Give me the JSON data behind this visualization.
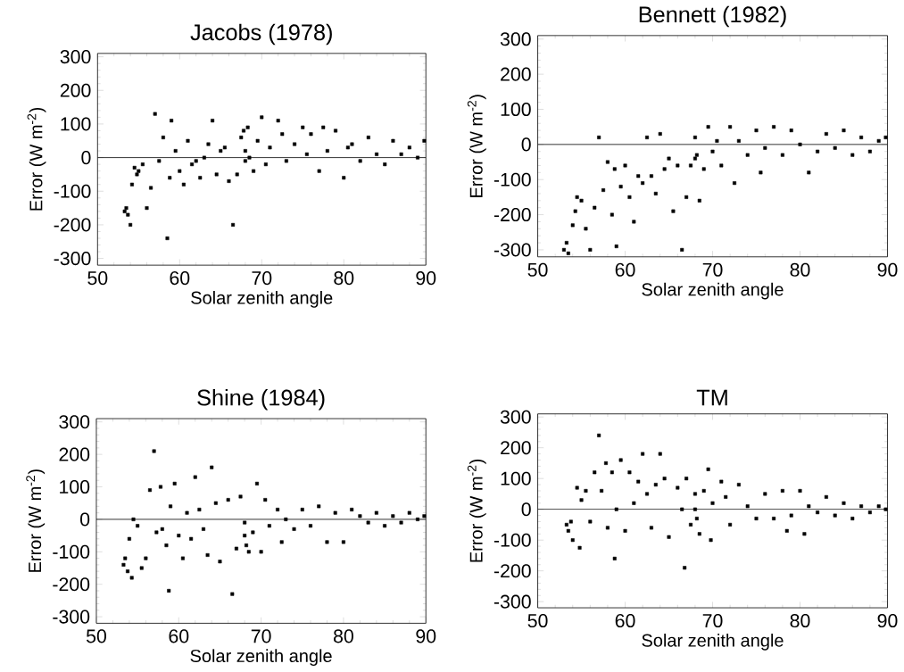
{
  "chart_data": [
    {
      "type": "scatter",
      "title": "Jacobs (1978)",
      "xlabel": "Solar zenith angle",
      "ylabel": "Error (W m$^{-2}$)",
      "xlim": [
        50,
        90
      ],
      "ylim": [
        -320,
        310
      ],
      "xticks": [
        50,
        60,
        70,
        80,
        90
      ],
      "yticks": [
        -300,
        -200,
        -100,
        0,
        100,
        200,
        300
      ],
      "marker": "square",
      "ref_lines": [
        {
          "axis": "y",
          "value": 0
        }
      ],
      "series": [
        {
          "color": "#000000",
          "x": [
            53.3,
            53.5,
            53.7,
            54,
            54.2,
            54.5,
            54.8,
            55,
            55.5,
            56,
            56.5,
            57,
            57.5,
            58,
            58.5,
            58.8,
            59,
            59.5,
            60,
            60.5,
            61,
            61.5,
            62,
            62.5,
            63,
            63.5,
            64,
            64.5,
            65,
            65.5,
            66,
            66.5,
            67,
            67.5,
            67.8,
            68,
            68,
            68.3,
            68.5,
            69,
            69.5,
            70,
            70.5,
            71,
            72,
            72.5,
            73,
            74,
            75,
            75.5,
            76,
            77,
            77.5,
            78,
            79,
            80,
            80.5,
            81,
            82,
            83,
            84,
            85,
            86,
            87,
            88,
            89,
            89.8
          ],
          "values": [
            -160,
            -150,
            -170,
            -200,
            -80,
            -30,
            -50,
            -40,
            -20,
            -150,
            -90,
            130,
            -10,
            60,
            -240,
            -60,
            110,
            20,
            -40,
            -80,
            50,
            -20,
            -10,
            -60,
            0,
            40,
            110,
            -50,
            20,
            30,
            -70,
            -200,
            -50,
            60,
            80,
            20,
            -10,
            90,
            0,
            -40,
            50,
            120,
            -20,
            30,
            110,
            70,
            -10,
            40,
            90,
            10,
            70,
            -40,
            90,
            20,
            80,
            -60,
            30,
            40,
            -10,
            60,
            10,
            -20,
            50,
            10,
            30,
            0,
            50
          ]
        }
      ]
    },
    {
      "type": "scatter",
      "title": "Bennett (1982)",
      "xlabel": "Solar zenith angle",
      "ylabel": "Error (W m$^{-2}$)",
      "xlim": [
        50,
        90
      ],
      "ylim": [
        -320,
        310
      ],
      "xticks": [
        50,
        60,
        70,
        80,
        90
      ],
      "yticks": [
        -300,
        -200,
        -100,
        0,
        100,
        200,
        300
      ],
      "marker": "square",
      "ref_lines": [
        {
          "axis": "y",
          "value": 0
        }
      ],
      "series": [
        {
          "color": "#000000",
          "x": [
            53,
            53.3,
            53.5,
            54,
            54.3,
            54.5,
            55,
            55.5,
            56,
            56.5,
            57,
            57.5,
            58,
            58.5,
            58.8,
            59,
            59.5,
            60,
            60.5,
            61,
            61.5,
            62,
            62.5,
            63,
            63.5,
            64,
            64.5,
            65,
            65.5,
            66,
            66.5,
            67,
            67.5,
            68,
            68,
            68.2,
            68.5,
            69,
            69.5,
            70,
            70.5,
            71,
            72,
            72.5,
            73,
            74,
            75,
            75.5,
            76,
            77,
            78,
            79,
            80,
            81,
            82,
            83,
            84,
            85,
            86,
            87,
            88,
            89,
            89.8
          ],
          "values": [
            -300,
            -280,
            -310,
            -230,
            -190,
            -150,
            -160,
            -240,
            -300,
            -180,
            20,
            -130,
            -50,
            -200,
            -70,
            -290,
            -120,
            -60,
            -150,
            -220,
            -90,
            -110,
            20,
            -90,
            -140,
            30,
            -70,
            -40,
            -190,
            -60,
            -300,
            -150,
            -60,
            20,
            -40,
            -30,
            -160,
            -70,
            50,
            -20,
            10,
            -60,
            50,
            -110,
            10,
            -30,
            40,
            -80,
            -10,
            50,
            -30,
            40,
            0,
            -80,
            -20,
            30,
            -10,
            40,
            -30,
            20,
            -20,
            10,
            20
          ]
        }
      ]
    },
    {
      "type": "scatter",
      "title": "Shine (1984)",
      "xlabel": "Solar zenith angle",
      "ylabel": "Error (W m$^{-2}$)",
      "xlim": [
        50,
        90
      ],
      "ylim": [
        -320,
        310
      ],
      "xticks": [
        50,
        60,
        70,
        80,
        90
      ],
      "yticks": [
        -300,
        -200,
        -100,
        0,
        100,
        200,
        300
      ],
      "marker": "square",
      "ref_lines": [
        {
          "axis": "y",
          "value": 0
        }
      ],
      "series": [
        {
          "color": "#000000",
          "x": [
            53.3,
            53.5,
            53.8,
            54,
            54.3,
            54.5,
            55,
            55.5,
            56,
            56.5,
            57,
            57.3,
            57.8,
            58,
            58.5,
            58.8,
            59,
            59.5,
            60,
            60.5,
            61,
            61.5,
            62,
            62.5,
            63,
            63.5,
            64,
            64.5,
            65,
            66,
            66.5,
            67,
            67.5,
            68,
            68,
            68.2,
            68.5,
            69,
            69.5,
            70,
            70.5,
            71,
            72,
            72.5,
            73,
            74,
            75,
            76,
            77,
            78,
            79,
            80,
            81,
            82,
            83,
            84,
            85,
            86,
            87,
            88,
            89,
            89.8
          ],
          "values": [
            -140,
            -120,
            -160,
            -60,
            -180,
            0,
            -20,
            -150,
            -120,
            90,
            210,
            -40,
            100,
            -30,
            -80,
            -220,
            40,
            110,
            -50,
            -120,
            20,
            -60,
            130,
            30,
            -30,
            -110,
            160,
            50,
            -130,
            60,
            -230,
            -90,
            70,
            -10,
            -50,
            -80,
            -100,
            -40,
            110,
            -100,
            60,
            -20,
            30,
            -70,
            0,
            -30,
            30,
            -20,
            40,
            -70,
            20,
            -70,
            30,
            10,
            -10,
            20,
            -20,
            10,
            -10,
            20,
            0,
            10
          ]
        }
      ]
    },
    {
      "type": "scatter",
      "title": "TM",
      "xlabel": "Solar zenith angle",
      "ylabel": "Error (W m$^{-2}$)",
      "xlim": [
        50,
        90
      ],
      "ylim": [
        -320,
        310
      ],
      "xticks": [
        50,
        60,
        70,
        80,
        90
      ],
      "yticks": [
        -300,
        -200,
        -100,
        0,
        100,
        200,
        300
      ],
      "marker": "square",
      "ref_lines": [
        {
          "axis": "y",
          "value": 0
        }
      ],
      "series": [
        {
          "color": "#000000",
          "x": [
            53.3,
            53.5,
            53.8,
            54,
            54.5,
            54.8,
            55,
            55.5,
            56,
            56.5,
            57,
            57.3,
            57.8,
            58,
            58.5,
            58.8,
            59,
            59.5,
            60,
            60.5,
            61,
            61.5,
            62,
            62.5,
            63,
            63.5,
            64,
            64.5,
            65,
            66,
            66.5,
            66.8,
            67,
            67.5,
            68,
            68,
            68.2,
            68.5,
            69,
            69.5,
            69.8,
            70,
            71,
            71.5,
            72,
            73,
            74,
            75,
            76,
            77,
            78,
            78.5,
            79,
            80,
            80.5,
            81,
            82,
            83,
            84,
            85,
            86,
            87,
            88,
            89,
            89.8
          ],
          "values": [
            -50,
            -70,
            -40,
            -100,
            70,
            -125,
            30,
            60,
            -40,
            120,
            240,
            60,
            150,
            -60,
            120,
            -160,
            0,
            160,
            -70,
            120,
            20,
            90,
            180,
            50,
            -60,
            80,
            180,
            100,
            -90,
            70,
            0,
            -190,
            100,
            -50,
            50,
            0,
            -30,
            -80,
            60,
            130,
            -100,
            20,
            90,
            40,
            -50,
            80,
            10,
            -30,
            50,
            -30,
            60,
            -70,
            -20,
            60,
            -80,
            10,
            -10,
            40,
            -20,
            20,
            -30,
            10,
            -10,
            10,
            0
          ]
        }
      ]
    }
  ]
}
